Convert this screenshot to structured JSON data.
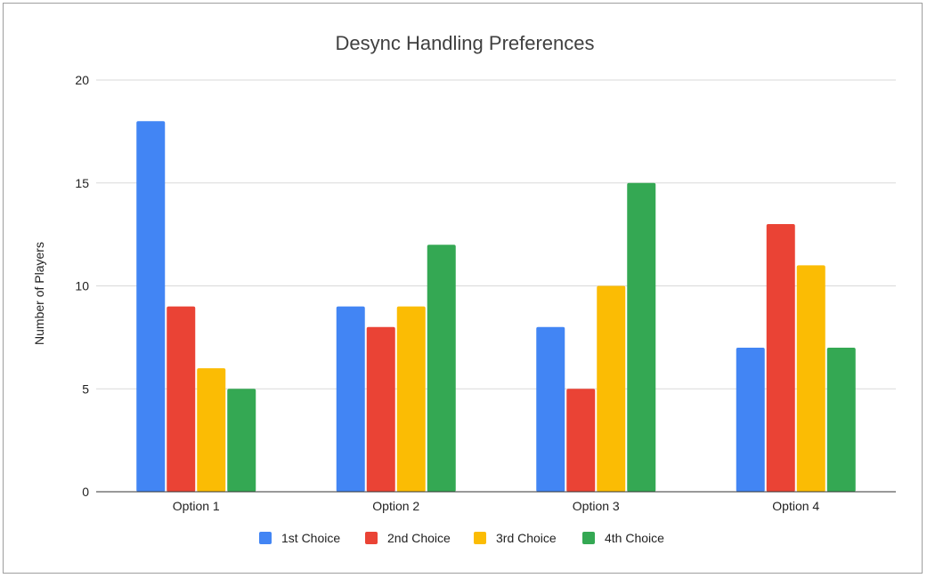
{
  "chart_data": {
    "type": "bar",
    "title": "Desync Handling Preferences",
    "xlabel": "",
    "ylabel": "Number of Players",
    "ylim": [
      0,
      20
    ],
    "yticks": [
      "0",
      "5",
      "10",
      "15",
      "20"
    ],
    "grid": true,
    "legend_position": "bottom",
    "categories": [
      "Option 1",
      "Option 2",
      "Option 3",
      "Option 4"
    ],
    "series": [
      {
        "name": "1st Choice",
        "color": "#4285f4",
        "values": [
          18,
          9,
          8,
          7
        ]
      },
      {
        "name": "2nd Choice",
        "color": "#ea4335",
        "values": [
          9,
          8,
          5,
          13
        ]
      },
      {
        "name": "3rd Choice",
        "color": "#fbbc04",
        "values": [
          6,
          9,
          10,
          11
        ]
      },
      {
        "name": "4th Choice",
        "color": "#34a853",
        "values": [
          5,
          12,
          15,
          7
        ]
      }
    ]
  }
}
